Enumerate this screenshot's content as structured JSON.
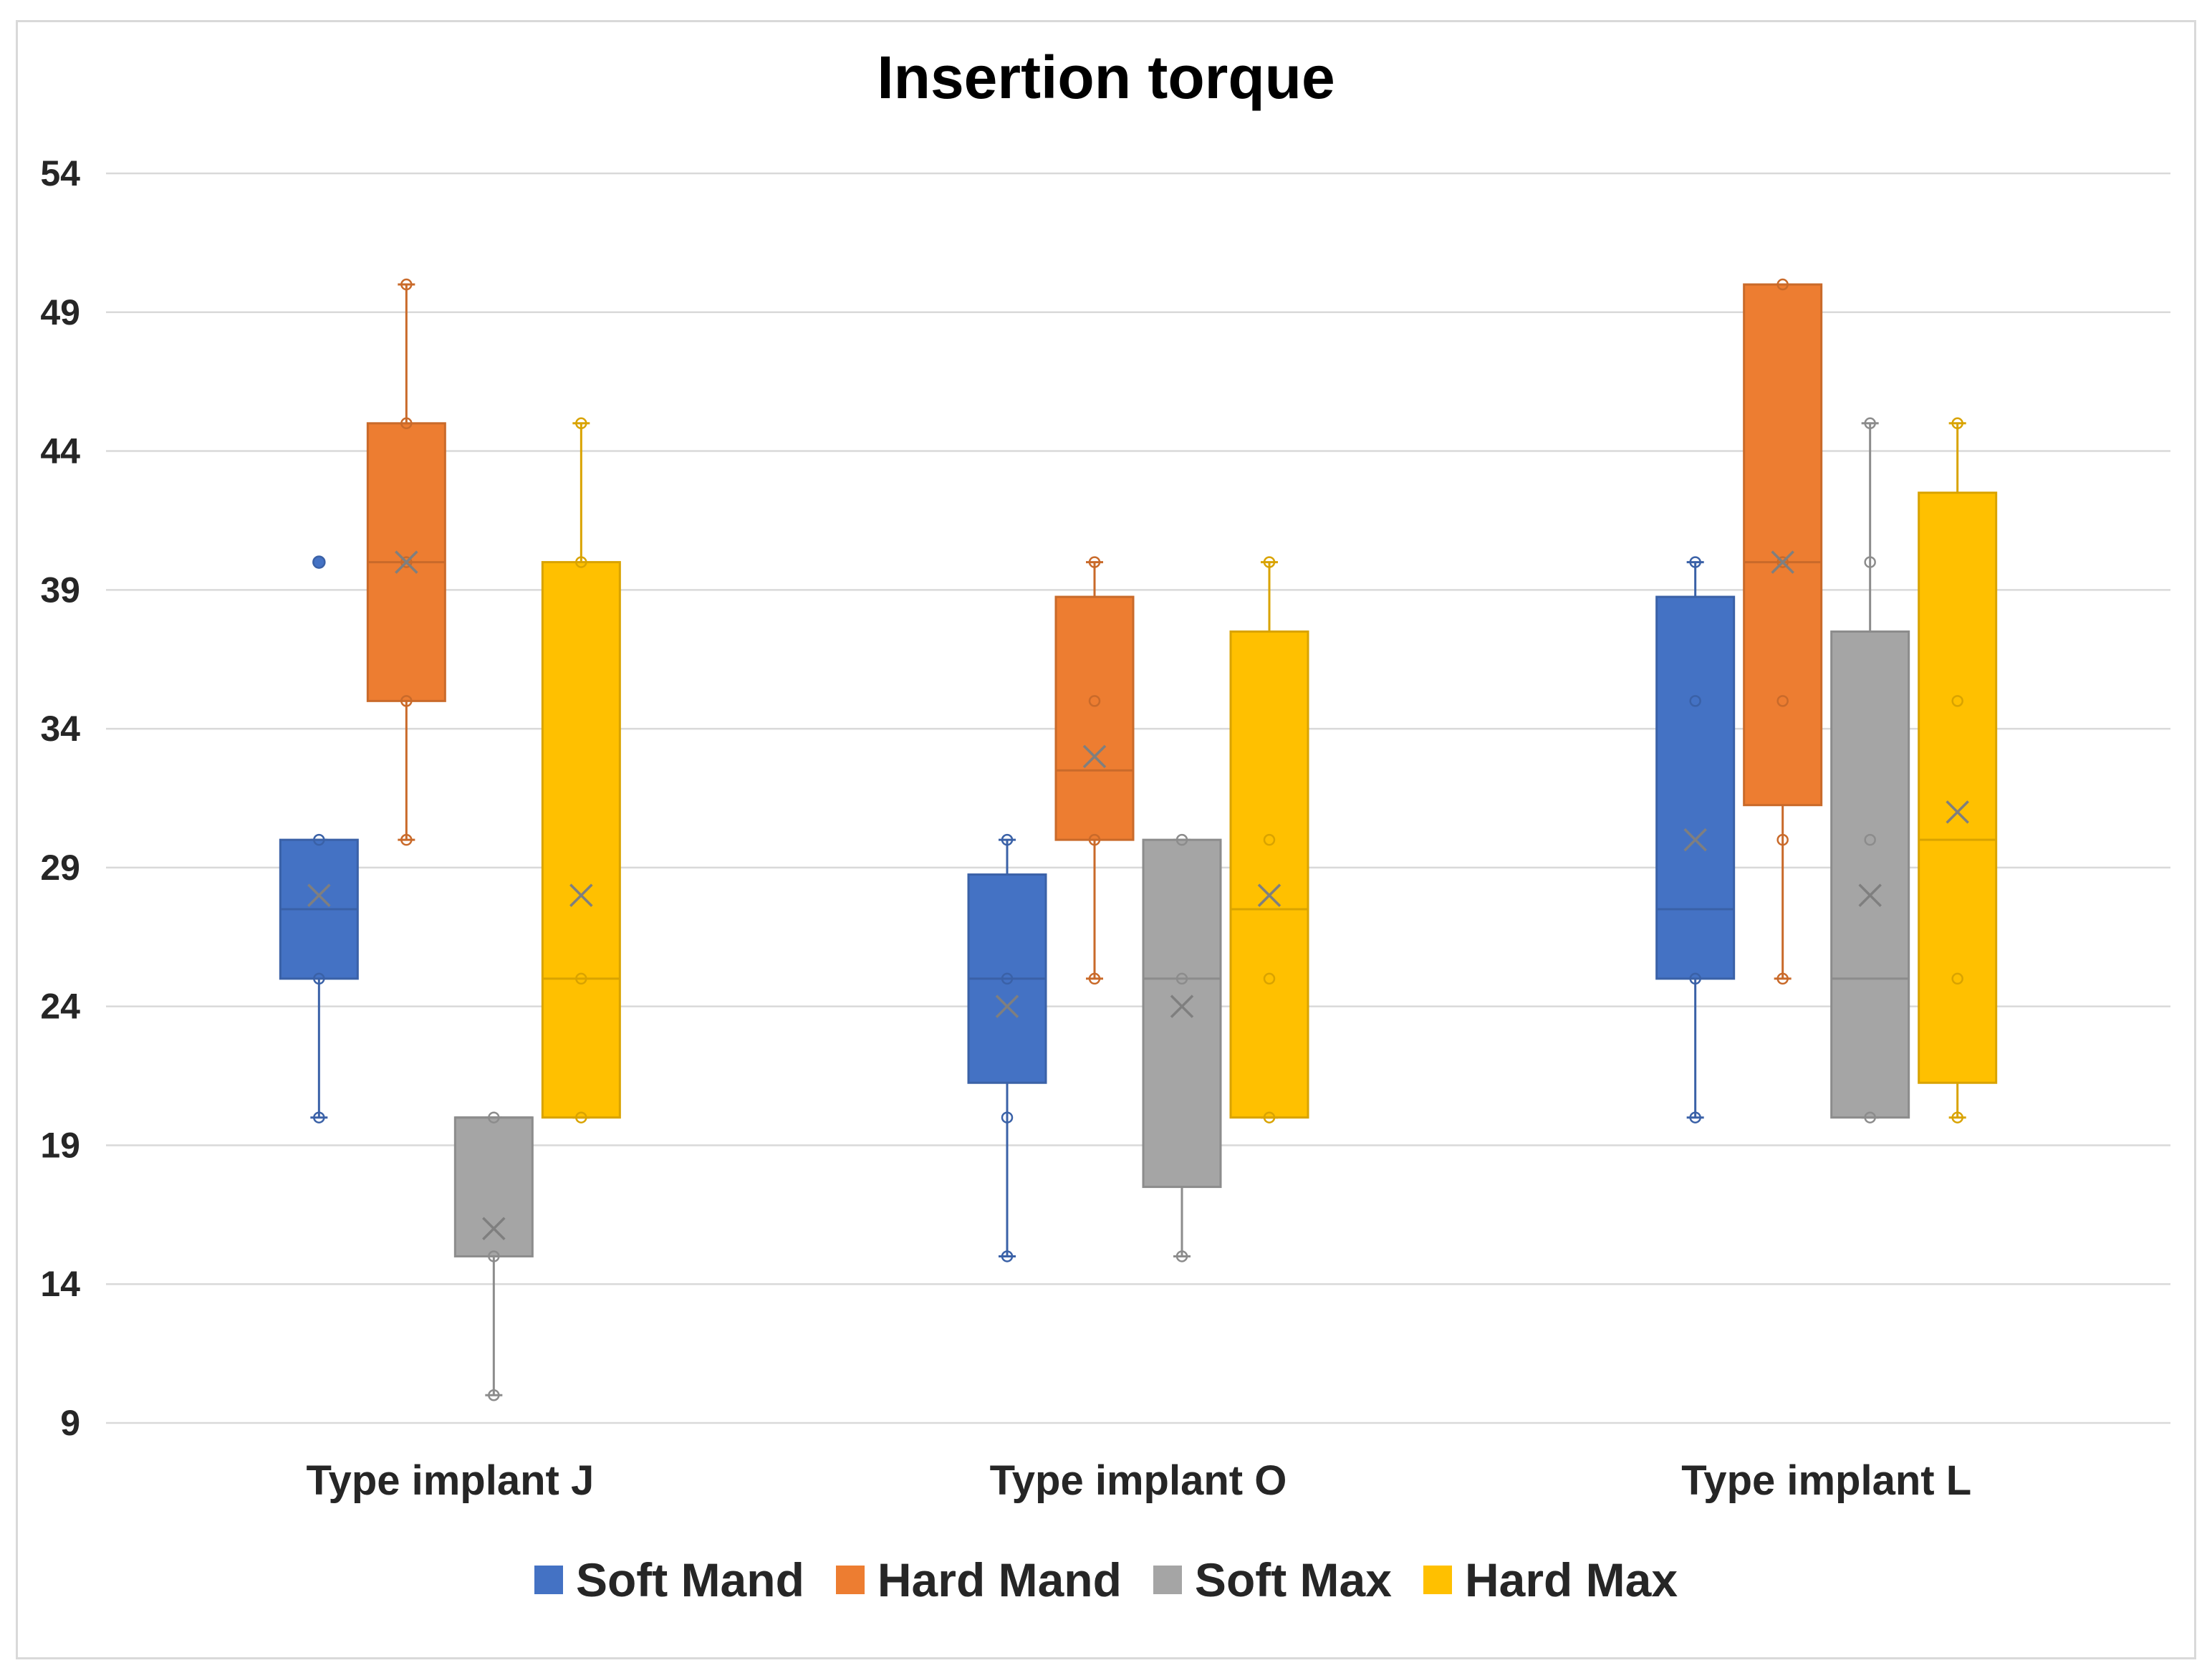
{
  "chart_data": {
    "type": "boxplot",
    "title": "Insertion torque",
    "xlabel": "",
    "ylabel": "",
    "ylim": [
      9,
      54
    ],
    "yticks": [
      9,
      14,
      19,
      24,
      29,
      34,
      39,
      44,
      49,
      54
    ],
    "categories": [
      "Type implant J",
      "Type implant O",
      "Type implant L"
    ],
    "grid": true,
    "legend_position": "bottom",
    "series": [
      {
        "name": "Soft Mand",
        "color": "#4472c4",
        "boxes": [
          {
            "whisker_low": 20,
            "q1": 25,
            "median": 27.5,
            "q3": 30,
            "whisker_high": 30,
            "mean": 28,
            "points": [
              20,
              25,
              30,
              40
            ],
            "outliers": [
              40
            ]
          },
          {
            "whisker_low": 15,
            "q1": 21.25,
            "median": 25,
            "q3": 28.75,
            "whisker_high": 30,
            "mean": 24,
            "points": [
              15,
              20,
              25,
              30
            ],
            "outliers": []
          },
          {
            "whisker_low": 20,
            "q1": 25,
            "median": 27.5,
            "q3": 38.75,
            "whisker_high": 40,
            "mean": 30,
            "points": [
              20,
              25,
              35,
              40
            ],
            "outliers": []
          }
        ]
      },
      {
        "name": "Hard Mand",
        "color": "#ed7d31",
        "boxes": [
          {
            "whisker_low": 30,
            "q1": 35,
            "median": 40,
            "q3": 45,
            "whisker_high": 50,
            "mean": 40,
            "points": [
              30,
              35,
              40,
              45,
              50
            ],
            "outliers": []
          },
          {
            "whisker_low": 25,
            "q1": 30,
            "median": 32.5,
            "q3": 38.75,
            "whisker_high": 40,
            "mean": 33,
            "points": [
              25,
              30,
              35,
              40
            ],
            "outliers": []
          },
          {
            "whisker_low": 25,
            "q1": 31.25,
            "median": 40,
            "q3": 50,
            "whisker_high": 50,
            "mean": 40,
            "points": [
              25,
              30,
              35,
              40,
              50
            ],
            "outliers": []
          }
        ]
      },
      {
        "name": "Soft Max",
        "color": "#a5a5a5",
        "boxes": [
          {
            "whisker_low": 10,
            "q1": 15,
            "median": 20,
            "q3": 20,
            "whisker_high": 20,
            "mean": 16,
            "points": [
              10,
              15,
              20
            ],
            "outliers": []
          },
          {
            "whisker_low": 15,
            "q1": 17.5,
            "median": 25,
            "q3": 30,
            "whisker_high": 30,
            "mean": 24,
            "points": [
              15,
              25,
              30
            ],
            "outliers": []
          },
          {
            "whisker_low": 20,
            "q1": 20,
            "median": 25,
            "q3": 37.5,
            "whisker_high": 45,
            "mean": 28,
            "points": [
              20,
              30,
              40,
              45
            ],
            "outliers": []
          }
        ]
      },
      {
        "name": "Hard Max",
        "color": "#ffc000",
        "boxes": [
          {
            "whisker_low": 20,
            "q1": 20,
            "median": 25,
            "q3": 40,
            "whisker_high": 45,
            "mean": 28,
            "points": [
              20,
              25,
              40,
              45
            ],
            "outliers": []
          },
          {
            "whisker_low": 20,
            "q1": 20,
            "median": 27.5,
            "q3": 37.5,
            "whisker_high": 40,
            "mean": 28,
            "points": [
              20,
              25,
              30,
              40
            ],
            "outliers": []
          },
          {
            "whisker_low": 20,
            "q1": 21.25,
            "median": 30,
            "q3": 42.5,
            "whisker_high": 45,
            "mean": 31,
            "points": [
              20,
              25,
              35,
              45
            ],
            "outliers": []
          }
        ]
      }
    ]
  }
}
